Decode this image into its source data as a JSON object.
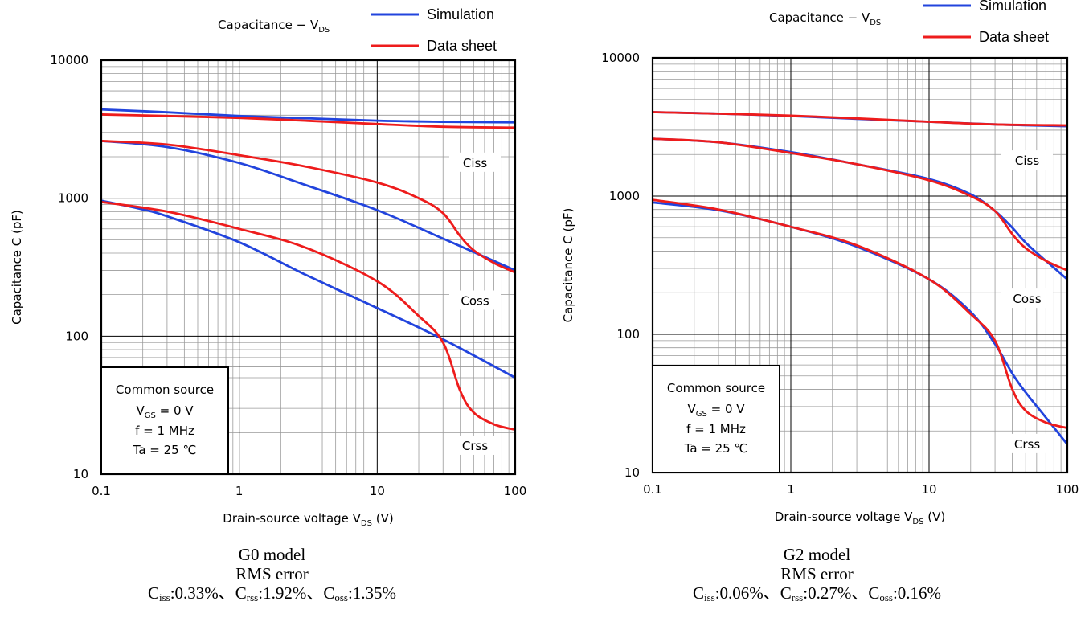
{
  "colors": {
    "simulation": "#2244dd",
    "datasheet": "#ee1c1c",
    "frame": "#000000",
    "grid": "#9a9a9a"
  },
  "shared": {
    "legend": {
      "simulation": "Simulation",
      "datasheet": "Data sheet"
    },
    "conditions": {
      "line1": "Common source",
      "vgs_main": "V",
      "vgs_sub": "GS",
      "vgs_rest": " = 0 V",
      "line3": "f = 1 MHz",
      "line4": "Ta = 25 ℃"
    },
    "curve_labels": {
      "ciss": "Ciss",
      "coss": "Coss",
      "crss": "Crss"
    },
    "caption_separator": "、"
  },
  "panels": [
    {
      "chart_title_main": "Capacitance − V",
      "chart_title_sub": "DS",
      "caption": {
        "model": "G0 model",
        "metric": "RMS error",
        "terms": [
          {
            "symbol": "C",
            "sub": "iss",
            "value": ":0.33%"
          },
          {
            "symbol": "C",
            "sub": "rss",
            "value": ":1.92%"
          },
          {
            "symbol": "C",
            "sub": "oss",
            "value": ":1.35%"
          }
        ]
      }
    },
    {
      "chart_title_main": "Capacitance − V",
      "chart_title_sub": "DS",
      "caption": {
        "model": "G2 model",
        "metric": "RMS error",
        "terms": [
          {
            "symbol": "C",
            "sub": "iss",
            "value": ":0.06%"
          },
          {
            "symbol": "C",
            "sub": "rss",
            "value": ":0.27%"
          },
          {
            "symbol": "C",
            "sub": "oss",
            "value": ":0.16%"
          }
        ]
      }
    }
  ],
  "chart_data": [
    {
      "type": "line",
      "title": "Capacitance − VDS",
      "xlabel": "Drain-source voltage  VDS (V)",
      "ylabel": "Capacitance  C  (pF)",
      "x_scale": "log",
      "y_scale": "log",
      "xlim": [
        0.1,
        100
      ],
      "ylim": [
        10,
        10000
      ],
      "x_ticks": [
        "0.1",
        "1",
        "10",
        "100"
      ],
      "y_ticks": [
        "10",
        "100",
        "1000",
        "10000"
      ],
      "grid": true,
      "legend": "top-right",
      "series": [
        {
          "name": "Simulation",
          "curve": "Ciss",
          "x": [
            0.1,
            0.3,
            1,
            3,
            10,
            30,
            100
          ],
          "y": [
            4400,
            4200,
            3950,
            3800,
            3650,
            3580,
            3550
          ]
        },
        {
          "name": "Data sheet",
          "curve": "Ciss",
          "x": [
            0.1,
            0.3,
            1,
            3,
            10,
            30,
            100
          ],
          "y": [
            4050,
            3950,
            3820,
            3650,
            3450,
            3300,
            3250
          ]
        },
        {
          "name": "Simulation",
          "curve": "Coss",
          "x": [
            0.1,
            0.3,
            1,
            3,
            10,
            30,
            100
          ],
          "y": [
            2600,
            2350,
            1800,
            1250,
            820,
            510,
            300
          ]
        },
        {
          "name": "Data sheet",
          "curve": "Coss",
          "x": [
            0.1,
            0.3,
            1,
            3,
            10,
            20,
            30,
            40,
            50,
            70,
            100
          ],
          "y": [
            2600,
            2450,
            2050,
            1700,
            1300,
            1000,
            780,
            530,
            420,
            340,
            290
          ]
        },
        {
          "name": "Simulation",
          "curve": "Crss",
          "x": [
            0.1,
            0.2,
            0.3,
            1,
            3,
            10,
            30,
            100
          ],
          "y": [
            960,
            830,
            740,
            480,
            280,
            160,
            95,
            50
          ]
        },
        {
          "name": "Data sheet",
          "curve": "Crss",
          "x": [
            0.1,
            0.3,
            1,
            3,
            10,
            20,
            30,
            40,
            50,
            70,
            100
          ],
          "y": [
            940,
            800,
            600,
            440,
            250,
            140,
            90,
            40,
            28,
            23,
            21
          ]
        }
      ],
      "annotations": [
        "Ciss",
        "Coss",
        "Crss",
        "Common source",
        "VGS = 0 V",
        "f = 1 MHz",
        "Ta = 25 ℃"
      ]
    },
    {
      "type": "line",
      "title": "Capacitance − VDS",
      "xlabel": "Drain-source voltage  VDS (V)",
      "ylabel": "Capacitance  C  (pF)",
      "x_scale": "log",
      "y_scale": "log",
      "xlim": [
        0.1,
        100
      ],
      "ylim": [
        10,
        10000
      ],
      "x_ticks": [
        "0.1",
        "1",
        "10",
        "100"
      ],
      "y_ticks": [
        "10",
        "100",
        "1000",
        "10000"
      ],
      "grid": true,
      "legend": "top-right",
      "series": [
        {
          "name": "Simulation",
          "curve": "Ciss",
          "x": [
            0.1,
            0.3,
            1,
            3,
            10,
            30,
            100
          ],
          "y": [
            4050,
            3950,
            3800,
            3620,
            3450,
            3300,
            3200
          ]
        },
        {
          "name": "Data sheet",
          "curve": "Ciss",
          "x": [
            0.1,
            0.3,
            1,
            3,
            10,
            30,
            100
          ],
          "y": [
            4050,
            3950,
            3820,
            3650,
            3450,
            3300,
            3250
          ]
        },
        {
          "name": "Simulation",
          "curve": "Coss",
          "x": [
            0.1,
            0.3,
            1,
            3,
            10,
            20,
            30,
            40,
            50,
            70,
            100
          ],
          "y": [
            2600,
            2450,
            2080,
            1700,
            1330,
            1030,
            780,
            590,
            460,
            340,
            250
          ]
        },
        {
          "name": "Data sheet",
          "curve": "Coss",
          "x": [
            0.1,
            0.3,
            1,
            3,
            10,
            20,
            30,
            40,
            50,
            70,
            100
          ],
          "y": [
            2600,
            2450,
            2050,
            1700,
            1300,
            1000,
            780,
            530,
            420,
            340,
            290
          ]
        },
        {
          "name": "Simulation",
          "curve": "Crss",
          "x": [
            0.1,
            0.3,
            1,
            3,
            10,
            20,
            30,
            40,
            50,
            70,
            100
          ],
          "y": [
            900,
            790,
            600,
            430,
            250,
            145,
            85,
            52,
            38,
            25,
            16
          ]
        },
        {
          "name": "Data sheet",
          "curve": "Crss",
          "x": [
            0.1,
            0.3,
            1,
            3,
            10,
            20,
            30,
            40,
            50,
            70,
            100
          ],
          "y": [
            940,
            800,
            600,
            440,
            250,
            140,
            90,
            40,
            28,
            23,
            21
          ]
        }
      ],
      "annotations": [
        "Ciss",
        "Coss",
        "Crss",
        "Common source",
        "VGS = 0 V",
        "f = 1 MHz",
        "Ta = 25 ℃"
      ]
    }
  ]
}
